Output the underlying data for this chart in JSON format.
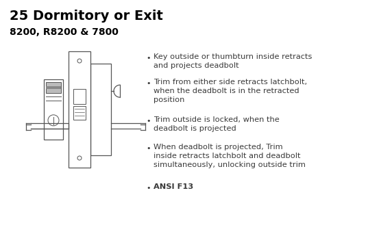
{
  "title": "25 Dormitory or Exit",
  "subtitle": "8200, R8200 & 7800",
  "title_fontsize": 14,
  "subtitle_fontsize": 10,
  "bullet_fontsize": 8.2,
  "bg_color": "#ffffff",
  "text_color": "#3a3a3a",
  "bullet_color": "#3a3a3a",
  "title_color": "#000000",
  "subtitle_color": "#000000",
  "draw_color": "#555555",
  "bullets": [
    "Key outside or thumbturn inside retracts\nand projects deadbolt",
    "Trim from either side retracts latchbolt,\nwhen the deadbolt is in the retracted\nposition",
    "Trim outside is locked, when the\ndeadbolt is projected",
    "When deadbolt is projected, Trim\ninside retracts latchbolt and deadbolt\nsimultaneously, unlocking outside trim",
    "ANSI F13"
  ],
  "fig_w": 5.72,
  "fig_h": 3.61,
  "dpi": 100
}
